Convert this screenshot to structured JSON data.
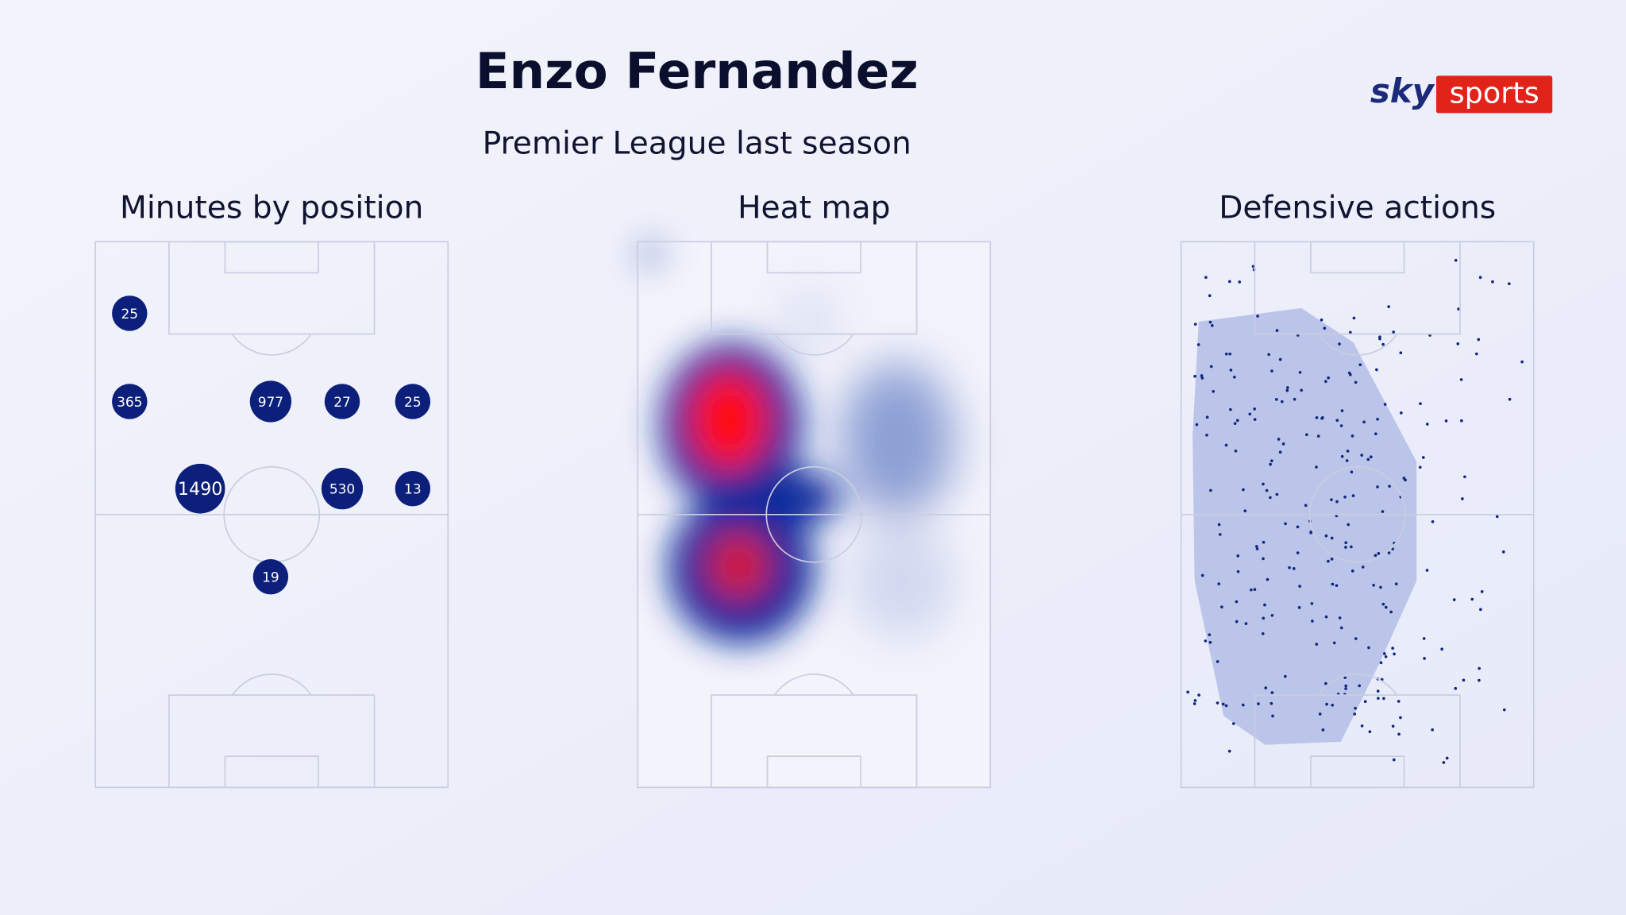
{
  "header": {
    "title": "Enzo Fernandez",
    "subtitle": "Premier League last season"
  },
  "logo": {
    "brand": "sky",
    "product": "sports"
  },
  "panels": [
    {
      "title": "Minutes by position"
    },
    {
      "title": "Heat map"
    },
    {
      "title": "Defensive actions"
    }
  ],
  "positions": [
    {
      "minutes": 25
    },
    {
      "minutes": 365
    },
    {
      "minutes": 977
    },
    {
      "minutes": 27
    },
    {
      "minutes": 25
    },
    {
      "minutes": 1490
    },
    {
      "minutes": 530
    },
    {
      "minutes": 13
    },
    {
      "minutes": 19
    }
  ]
}
